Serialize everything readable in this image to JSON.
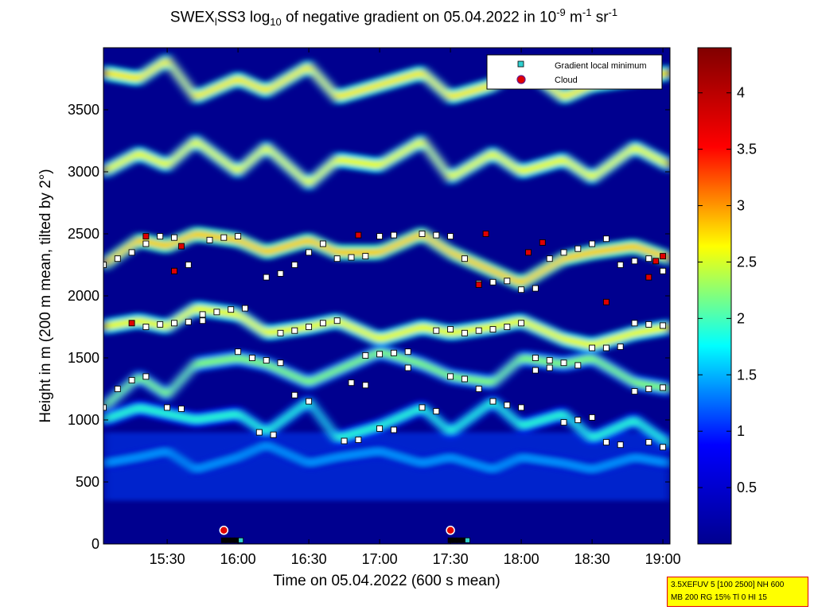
{
  "title": {
    "prefix": "SWEX",
    "sub1": "l",
    "mid": "SS3 log",
    "sub2": "10",
    "text": " of negative gradient on 05.04.2022 in 10",
    "sup1": "-9",
    "unit1": " m",
    "sup2": "-1",
    "unit2": " sr",
    "sup3": "-1"
  },
  "info_box": {
    "line1": "3.5XEFUV 5 [100 2500] NH 600",
    "line2": "MB 200 RG 15% Tl 0 HI 15"
  },
  "chart_data": {
    "type": "heatmap",
    "xlabel": "Time on 05.04.2022 (600 s mean)",
    "ylabel": "Height in m (200 m mean, tilted by 2°)",
    "x_ticks": [
      "15:30",
      "16:00",
      "16:30",
      "17:00",
      "17:30",
      "18:00",
      "18:30",
      "19:00"
    ],
    "x_tick_hours": [
      15.5,
      16.0,
      16.5,
      17.0,
      17.5,
      18.0,
      18.5,
      19.0
    ],
    "xlim": [
      15.05,
      19.05
    ],
    "y_ticks": [
      0,
      500,
      1000,
      1500,
      2000,
      2500,
      3000,
      3500
    ],
    "ylim": [
      0,
      4000
    ],
    "colorbar": {
      "ticks": [
        0.5,
        1,
        1.5,
        2,
        2.5,
        3,
        3.5,
        4
      ],
      "labels": [
        "0.5",
        "1",
        "1.5",
        "2",
        "2.5",
        "3",
        "3.5",
        "4"
      ],
      "range": [
        0,
        4.4
      ],
      "colormap": [
        "#00008f",
        "#0000ff",
        "#00ffff",
        "#ffff00",
        "#ff0000",
        "#800000"
      ]
    },
    "legend": {
      "placement": "top-right",
      "entries": [
        {
          "label": "Gradient local minimum",
          "marker": "square",
          "color": "#30d0d0"
        },
        {
          "label": "Cloud",
          "marker": "circle",
          "color": "#e00000"
        }
      ]
    },
    "layers": [
      {
        "name": "upper-layer",
        "x": [
          15.05,
          15.3,
          15.5,
          15.7,
          16.0,
          16.2,
          16.5,
          16.7,
          17.0,
          17.3,
          17.5,
          17.8,
          18.0,
          18.3,
          18.5,
          18.8,
          19.05
        ],
        "y": [
          3800,
          3750,
          3900,
          3600,
          3750,
          3650,
          3850,
          3600,
          3700,
          3800,
          3600,
          3700,
          3850,
          3600,
          3700,
          3750,
          3800
        ],
        "level": 2.7
      },
      {
        "name": "layer-3000",
        "x": [
          15.05,
          15.3,
          15.5,
          15.7,
          16.0,
          16.2,
          16.5,
          16.7,
          17.0,
          17.3,
          17.5,
          17.8,
          18.0,
          18.3,
          18.5,
          18.8,
          19.05
        ],
        "y": [
          3000,
          3150,
          3050,
          3250,
          3000,
          3200,
          2900,
          3100,
          3050,
          3250,
          2950,
          3150,
          3000,
          3100,
          2950,
          3200,
          3050
        ],
        "level": 2.6
      },
      {
        "name": "layer-2400",
        "x": [
          15.05,
          15.3,
          15.5,
          15.7,
          16.0,
          16.2,
          16.5,
          16.7,
          17.0,
          17.3,
          17.5,
          17.8,
          18.0,
          18.3,
          18.5,
          18.8,
          19.05
        ],
        "y": [
          2250,
          2450,
          2400,
          2500,
          2450,
          2350,
          2450,
          2350,
          2350,
          2500,
          2350,
          2200,
          2100,
          2300,
          2350,
          2400,
          2300
        ],
        "level": 2.8
      },
      {
        "name": "layer-1800",
        "x": [
          15.05,
          15.3,
          15.5,
          15.7,
          16.0,
          16.2,
          16.5,
          16.7,
          17.0,
          17.3,
          17.5,
          17.8,
          18.0,
          18.3,
          18.5,
          18.8,
          19.05
        ],
        "y": [
          1750,
          1800,
          1750,
          1900,
          1850,
          1700,
          1750,
          1800,
          1650,
          1750,
          1700,
          1750,
          1800,
          1650,
          1600,
          1700,
          1750
        ],
        "level": 2.6
      },
      {
        "name": "layer-1400",
        "x": [
          15.05,
          15.3,
          15.5,
          15.7,
          16.0,
          16.2,
          16.5,
          16.7,
          17.0,
          17.3,
          17.5,
          17.8,
          18.0,
          18.3,
          18.5,
          18.8,
          19.05
        ],
        "y": [
          1100,
          1350,
          1200,
          1450,
          1500,
          1450,
          1300,
          1400,
          1550,
          1450,
          1350,
          1300,
          1500,
          1450,
          1500,
          1300,
          1250
        ],
        "level": 2.2
      },
      {
        "name": "layer-900",
        "x": [
          15.05,
          15.3,
          15.5,
          15.7,
          16.0,
          16.2,
          16.5,
          16.7,
          17.0,
          17.3,
          17.5,
          17.8,
          18.0,
          18.3,
          18.5,
          18.8,
          19.05
        ],
        "y": [
          1000,
          1100,
          1050,
          1000,
          1050,
          900,
          1150,
          850,
          950,
          1100,
          900,
          1150,
          950,
          1050,
          850,
          1000,
          800
        ],
        "level": 1.9
      },
      {
        "name": "layer-600",
        "x": [
          15.05,
          15.3,
          15.5,
          15.7,
          16.0,
          16.2,
          16.5,
          16.7,
          17.0,
          17.3,
          17.5,
          17.8,
          18.0,
          18.3,
          18.5,
          18.8,
          19.05
        ],
        "y": [
          650,
          700,
          750,
          600,
          700,
          800,
          650,
          700,
          750,
          650,
          700,
          600,
          700,
          650,
          600,
          700,
          650
        ],
        "level": 1.4
      }
    ],
    "gradient_minima": [
      {
        "name": "track-a",
        "x": [
          15.05,
          15.15,
          15.25,
          15.35,
          15.45,
          15.55
        ],
        "y": [
          2250,
          2300,
          2350,
          2420,
          2480,
          2470
        ]
      },
      {
        "name": "track-b",
        "x": [
          15.55,
          15.65,
          15.8,
          15.9,
          16.0
        ],
        "y": [
          2200,
          2250,
          2450,
          2470,
          2480
        ]
      },
      {
        "name": "track-c",
        "x": [
          15.35,
          15.45,
          15.55,
          15.65,
          15.75
        ],
        "y": [
          1750,
          1770,
          1780,
          1790,
          1800
        ]
      },
      {
        "name": "track-d",
        "x": [
          15.75,
          15.85,
          15.95,
          16.05
        ],
        "y": [
          1850,
          1870,
          1890,
          1900
        ]
      },
      {
        "name": "track-e",
        "x": [
          16.2,
          16.3,
          16.4,
          16.5,
          16.6
        ],
        "y": [
          2150,
          2180,
          2250,
          2350,
          2420
        ]
      },
      {
        "name": "track-f",
        "x": [
          16.7,
          16.8,
          16.9,
          17.0,
          17.1
        ],
        "y": [
          2300,
          2310,
          2320,
          2480,
          2490
        ]
      },
      {
        "name": "track-g",
        "x": [
          17.3,
          17.4,
          17.5,
          17.6
        ],
        "y": [
          2500,
          2490,
          2480,
          2300
        ]
      },
      {
        "name": "track-h",
        "x": [
          17.7,
          17.8,
          17.9,
          18.0,
          18.1
        ],
        "y": [
          2100,
          2110,
          2120,
          2050,
          2060
        ]
      },
      {
        "name": "track-i",
        "x": [
          18.2,
          18.3,
          18.4,
          18.5,
          18.6
        ],
        "y": [
          2300,
          2350,
          2380,
          2420,
          2460
        ]
      },
      {
        "name": "track-j",
        "x": [
          18.7,
          18.8,
          18.9,
          19.0
        ],
        "y": [
          2250,
          2280,
          2300,
          2200
        ]
      },
      {
        "name": "track-k",
        "x": [
          16.3,
          16.4,
          16.5,
          16.6,
          16.7
        ],
        "y": [
          1700,
          1720,
          1750,
          1780,
          1800
        ]
      },
      {
        "name": "track-l",
        "x": [
          16.9,
          17.0,
          17.1,
          17.2
        ],
        "y": [
          1520,
          1530,
          1540,
          1550
        ]
      },
      {
        "name": "track-m",
        "x": [
          17.4,
          17.5,
          17.6
        ],
        "y": [
          1720,
          1730,
          1700
        ]
      },
      {
        "name": "track-n",
        "x": [
          17.7,
          17.8,
          17.9,
          18.0
        ],
        "y": [
          1720,
          1730,
          1750,
          1780
        ]
      },
      {
        "name": "track-o",
        "x": [
          18.1,
          18.2,
          18.3,
          18.4,
          18.5
        ],
        "y": [
          1500,
          1480,
          1460,
          1440,
          1580
        ]
      },
      {
        "name": "track-p",
        "x": [
          18.6,
          18.7,
          18.8,
          18.9,
          19.0
        ],
        "y": [
          1580,
          1590,
          1780,
          1770,
          1760
        ]
      },
      {
        "name": "track-q",
        "x": [
          15.05,
          15.15,
          15.25,
          15.35,
          15.5,
          15.6
        ],
        "y": [
          1100,
          1250,
          1320,
          1350,
          1100,
          1090
        ]
      },
      {
        "name": "track-r",
        "x": [
          16.0,
          16.1,
          16.2,
          16.3,
          16.4,
          16.5
        ],
        "y": [
          1550,
          1500,
          1480,
          1460,
          1200,
          1150
        ]
      },
      {
        "name": "track-s",
        "x": [
          16.8,
          16.9,
          17.0,
          17.1,
          17.2
        ],
        "y": [
          1300,
          1280,
          930,
          920,
          1420
        ]
      },
      {
        "name": "track-t",
        "x": [
          17.3,
          17.4,
          17.5,
          17.6,
          17.7
        ],
        "y": [
          1100,
          1070,
          1350,
          1330,
          1250
        ]
      },
      {
        "name": "track-u",
        "x": [
          17.8,
          17.9,
          18.0,
          18.1,
          18.2
        ],
        "y": [
          1150,
          1120,
          1100,
          1400,
          1420
        ]
      },
      {
        "name": "track-v",
        "x": [
          18.3,
          18.4,
          18.5,
          18.6,
          18.7,
          18.8,
          18.9,
          19.0
        ],
        "y": [
          980,
          1000,
          1020,
          820,
          800,
          1230,
          1250,
          1260
        ]
      },
      {
        "name": "track-w",
        "x": [
          16.15,
          16.25,
          16.75,
          16.85,
          18.9,
          19.0
        ],
        "y": [
          900,
          880,
          830,
          840,
          820,
          780
        ]
      }
    ],
    "cloud_points": [
      {
        "name": "cloud-1",
        "x": 15.9,
        "y": 110
      },
      {
        "name": "cloud-2",
        "x": 17.5,
        "y": 110
      }
    ],
    "ground_markers": [
      {
        "name": "ground-1",
        "x": [
          15.9,
          15.93,
          15.96,
          15.99,
          16.02
        ],
        "y": [
          30,
          30,
          30,
          30,
          30
        ]
      },
      {
        "name": "ground-2",
        "x": [
          17.5,
          17.53,
          17.56,
          17.59,
          17.62
        ],
        "y": [
          30,
          30,
          30,
          30,
          30
        ]
      }
    ],
    "red_markers": {
      "x": [
        15.25,
        15.35,
        15.55,
        15.6,
        16.85,
        17.7,
        17.75,
        18.05,
        18.15,
        18.9,
        18.95,
        18.6,
        19.0
      ],
      "y": [
        1780,
        2480,
        2200,
        2400,
        2490,
        2090,
        2500,
        2350,
        2430,
        2150,
        2280,
        1950,
        2320
      ]
    }
  }
}
